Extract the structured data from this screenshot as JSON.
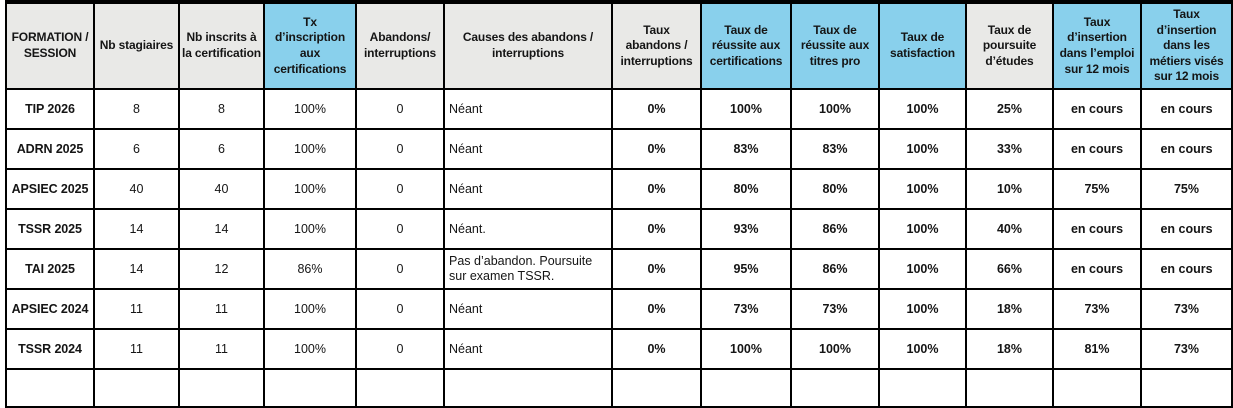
{
  "colors": {
    "header_blue": "#89d0ec",
    "header_gray": "#e9e9e7",
    "border": "#000000"
  },
  "table": {
    "columns": [
      {
        "label": "FORMATION / SESSION",
        "variant": "gray",
        "bold_values": true
      },
      {
        "label": "Nb stagiaires",
        "variant": "gray",
        "bold_values": false
      },
      {
        "label": "Nb inscrits à la certification",
        "variant": "gray",
        "bold_values": false
      },
      {
        "label": "Tx d’inscription aux certifications",
        "variant": "blue",
        "bold_values": false
      },
      {
        "label": "Abandons/ interruptions",
        "variant": "gray",
        "bold_values": false
      },
      {
        "label": "Causes des abandons / interruptions",
        "variant": "gray",
        "bold_values": false,
        "align": "left"
      },
      {
        "label": "Taux abandons / interruptions",
        "variant": "gray",
        "bold_values": true
      },
      {
        "label": "Taux de réussite aux certifications",
        "variant": "blue",
        "bold_values": true
      },
      {
        "label": "Taux de réussite aux titres pro",
        "variant": "blue",
        "bold_values": true
      },
      {
        "label": "Taux de satisfaction",
        "variant": "blue",
        "bold_values": true
      },
      {
        "label": "Taux de poursuite d’études",
        "variant": "gray",
        "bold_values": true
      },
      {
        "label": "Taux d’insertion dans l’emploi sur 12 mois",
        "variant": "blue",
        "bold_values": true
      },
      {
        "label": "Taux d’insertion dans les métiers visés sur 12 mois",
        "variant": "blue",
        "bold_values": true
      }
    ],
    "rows": [
      {
        "session": "TIP 2026",
        "cells": [
          "8",
          "8",
          "100%",
          "0",
          "Néant",
          "0%",
          "100%",
          "100%",
          "100%",
          "25%",
          "en cours",
          "en cours"
        ]
      },
      {
        "session": "ADRN 2025",
        "cells": [
          "6",
          "6",
          "100%",
          "0",
          "Néant",
          "0%",
          "83%",
          "83%",
          "100%",
          "33%",
          "en cours",
          "en cours"
        ]
      },
      {
        "session": "APSIEC 2025",
        "cells": [
          "40",
          "40",
          "100%",
          "0",
          "Néant",
          "0%",
          "80%",
          "80%",
          "100%",
          "10%",
          "75%",
          "75%"
        ]
      },
      {
        "session": "TSSR 2025",
        "cells": [
          "14",
          "14",
          "100%",
          "0",
          "Néant.",
          "0%",
          "93%",
          "86%",
          "100%",
          "40%",
          "en cours",
          "en cours"
        ]
      },
      {
        "session": "TAI 2025",
        "cells": [
          "14",
          "12",
          "86%",
          "0",
          "Pas d’abandon. Poursuite sur examen TSSR.",
          "0%",
          "95%",
          "86%",
          "100%",
          "66%",
          "en cours",
          "en cours"
        ]
      },
      {
        "session": "APSIEC 2024",
        "cells": [
          "11",
          "11",
          "100%",
          "0",
          "Néant",
          "0%",
          "73%",
          "73%",
          "100%",
          "18%",
          "73%",
          "73%"
        ]
      },
      {
        "session": "TSSR 2024",
        "cells": [
          "11",
          "11",
          "100%",
          "0",
          "Néant",
          "0%",
          "100%",
          "100%",
          "100%",
          "18%",
          "81%",
          "73%"
        ]
      }
    ]
  }
}
